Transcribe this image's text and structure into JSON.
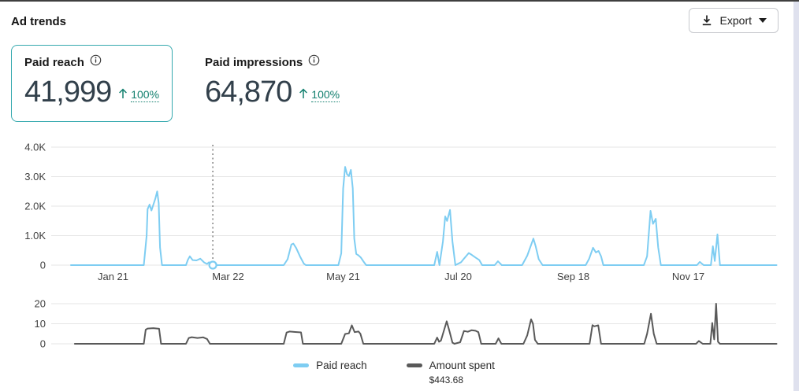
{
  "header": {
    "title": "Ad trends",
    "export_label": "Export"
  },
  "metrics": [
    {
      "label": "Paid reach",
      "value": "41,999",
      "trend_direction": "up",
      "trend_pct": "100%",
      "selected": true
    },
    {
      "label": "Paid impressions",
      "value": "64,870",
      "trend_direction": "up",
      "trend_pct": "100%",
      "selected": false
    }
  ],
  "colors": {
    "accent_teal": "#13806f",
    "selected_card_border": "#35a9ae",
    "paid_reach_line": "#7ecdf2",
    "amount_spent_line": "#595959",
    "gridline": "#e6e6e6",
    "axis_text": "#3f3f3f",
    "guide_line": "#8a8a8a"
  },
  "chart_data": [
    {
      "type": "line",
      "name": "Paid reach",
      "ylim": [
        0,
        4000
      ],
      "yticks": [
        {
          "v": 0,
          "label": "0"
        },
        {
          "v": 1000,
          "label": "1.0K"
        },
        {
          "v": 2000,
          "label": "2.0K"
        },
        {
          "v": 3000,
          "label": "3.0K"
        },
        {
          "v": 4000,
          "label": "4.0K"
        }
      ],
      "xlim": [
        0,
        368
      ],
      "xticks": [
        {
          "day": 22,
          "label": "Jan 21"
        },
        {
          "day": 82,
          "label": "Mar 22"
        },
        {
          "day": 142,
          "label": "May 21"
        },
        {
          "day": 202,
          "label": "Jul 20"
        },
        {
          "day": 262,
          "label": "Sep 18"
        },
        {
          "day": 322,
          "label": "Nov 17"
        }
      ],
      "guide_day": 74,
      "marker": {
        "day": 74,
        "value": 0
      },
      "points": [
        [
          0,
          0
        ],
        [
          38,
          0
        ],
        [
          39.5,
          1000
        ],
        [
          40,
          1900
        ],
        [
          41,
          2050
        ],
        [
          42,
          1850
        ],
        [
          44,
          2250
        ],
        [
          45,
          2500
        ],
        [
          45.8,
          2100
        ],
        [
          46.5,
          600
        ],
        [
          47.5,
          0
        ],
        [
          60,
          0
        ],
        [
          61,
          180
        ],
        [
          62,
          300
        ],
        [
          63.5,
          170
        ],
        [
          65.5,
          160
        ],
        [
          67.5,
          220
        ],
        [
          69.5,
          90
        ],
        [
          71,
          40
        ],
        [
          72,
          95
        ],
        [
          73.5,
          55
        ],
        [
          74,
          10
        ],
        [
          75,
          0
        ],
        [
          111,
          0
        ],
        [
          113,
          200
        ],
        [
          115,
          700
        ],
        [
          116,
          730
        ],
        [
          117.5,
          580
        ],
        [
          119.5,
          290
        ],
        [
          121.5,
          50
        ],
        [
          122.5,
          0
        ],
        [
          139.5,
          0
        ],
        [
          141,
          400
        ],
        [
          142,
          2600
        ],
        [
          143,
          3330
        ],
        [
          144,
          3080
        ],
        [
          145,
          3020
        ],
        [
          146,
          3230
        ],
        [
          147,
          2600
        ],
        [
          147.8,
          900
        ],
        [
          148.8,
          380
        ],
        [
          150,
          330
        ],
        [
          151.2,
          260
        ],
        [
          152.5,
          130
        ],
        [
          154,
          0
        ],
        [
          189.5,
          0
        ],
        [
          191,
          450
        ],
        [
          192.2,
          0
        ],
        [
          194,
          800
        ],
        [
          195.2,
          1650
        ],
        [
          196.2,
          1500
        ],
        [
          197.7,
          1870
        ],
        [
          199,
          800
        ],
        [
          200.5,
          0
        ],
        [
          203.5,
          100
        ],
        [
          205,
          220
        ],
        [
          207.5,
          410
        ],
        [
          209,
          350
        ],
        [
          211,
          260
        ],
        [
          213,
          170
        ],
        [
          214.5,
          0
        ],
        [
          221,
          0
        ],
        [
          222.7,
          130
        ],
        [
          224.7,
          0
        ],
        [
          235.3,
          0
        ],
        [
          238,
          320
        ],
        [
          241.2,
          900
        ],
        [
          242.4,
          640
        ],
        [
          244,
          200
        ],
        [
          246,
          0
        ],
        [
          268.5,
          0
        ],
        [
          270.3,
          220
        ],
        [
          272.3,
          590
        ],
        [
          273.8,
          430
        ],
        [
          275.2,
          480
        ],
        [
          276.5,
          300
        ],
        [
          277.7,
          0
        ],
        [
          298.8,
          0
        ],
        [
          300.5,
          300
        ],
        [
          302.3,
          1840
        ],
        [
          303.6,
          1400
        ],
        [
          305,
          1570
        ],
        [
          306.3,
          600
        ],
        [
          307.7,
          0
        ],
        [
          326.5,
          0
        ],
        [
          328,
          110
        ],
        [
          330,
          0
        ],
        [
          333.8,
          0
        ],
        [
          334.8,
          640
        ],
        [
          335.8,
          140
        ],
        [
          337.2,
          1040
        ],
        [
          338.5,
          0
        ],
        [
          368,
          0
        ]
      ]
    },
    {
      "type": "line",
      "name": "Amount spent",
      "ylim": [
        0,
        20
      ],
      "yticks": [
        {
          "v": 0,
          "label": "0"
        },
        {
          "v": 10,
          "label": "10"
        },
        {
          "v": 20,
          "label": "20"
        }
      ],
      "xlim": [
        0,
        368
      ],
      "total_label": "$443.68",
      "points": [
        [
          2,
          0
        ],
        [
          38,
          0
        ],
        [
          39,
          7
        ],
        [
          40,
          7.6
        ],
        [
          43,
          7.8
        ],
        [
          46,
          7.5
        ],
        [
          47,
          0
        ],
        [
          60,
          0
        ],
        [
          61.5,
          2.9
        ],
        [
          63,
          3.3
        ],
        [
          66,
          2.9
        ],
        [
          69,
          3.2
        ],
        [
          71,
          2.4
        ],
        [
          72.5,
          0
        ],
        [
          111,
          0
        ],
        [
          112.5,
          5.6
        ],
        [
          114,
          6.1
        ],
        [
          117,
          5.9
        ],
        [
          120,
          5.7
        ],
        [
          121,
          0
        ],
        [
          141,
          0
        ],
        [
          143,
          4.9
        ],
        [
          145,
          5.2
        ],
        [
          146.5,
          9.2
        ],
        [
          148,
          5.8
        ],
        [
          150,
          6.1
        ],
        [
          151,
          5
        ],
        [
          152.5,
          0
        ],
        [
          189.5,
          0
        ],
        [
          191,
          3.1
        ],
        [
          192,
          1
        ],
        [
          193,
          1.6
        ],
        [
          196,
          11.2
        ],
        [
          197.5,
          6
        ],
        [
          199,
          0.6
        ],
        [
          200,
          0
        ],
        [
          203,
          0.8
        ],
        [
          205,
          6.4
        ],
        [
          207,
          6
        ],
        [
          209,
          6.8
        ],
        [
          211,
          6.5
        ],
        [
          212.5,
          5.8
        ],
        [
          214,
          0
        ],
        [
          221.5,
          0
        ],
        [
          223,
          2.7
        ],
        [
          224.5,
          0
        ],
        [
          236,
          0
        ],
        [
          238,
          4.2
        ],
        [
          240,
          12.2
        ],
        [
          241,
          10
        ],
        [
          242,
          2
        ],
        [
          243.5,
          0
        ],
        [
          270.5,
          0
        ],
        [
          272,
          9.3
        ],
        [
          273,
          8.7
        ],
        [
          275,
          9.2
        ],
        [
          276.5,
          0
        ],
        [
          299,
          0
        ],
        [
          300.5,
          5
        ],
        [
          302.5,
          15
        ],
        [
          304,
          5
        ],
        [
          305.5,
          0
        ],
        [
          326,
          0
        ],
        [
          327.5,
          1.4
        ],
        [
          329.5,
          0
        ],
        [
          333.5,
          0
        ],
        [
          334.5,
          10.4
        ],
        [
          335.5,
          2.2
        ],
        [
          336.5,
          20
        ],
        [
          337.5,
          1
        ],
        [
          338.5,
          0
        ],
        [
          368,
          0
        ]
      ]
    }
  ],
  "legend": {
    "items": [
      {
        "label": "Paid reach",
        "color": "#7ecdf2"
      },
      {
        "label": "Amount spent",
        "color": "#595959",
        "sublabel": "$443.68"
      }
    ]
  }
}
